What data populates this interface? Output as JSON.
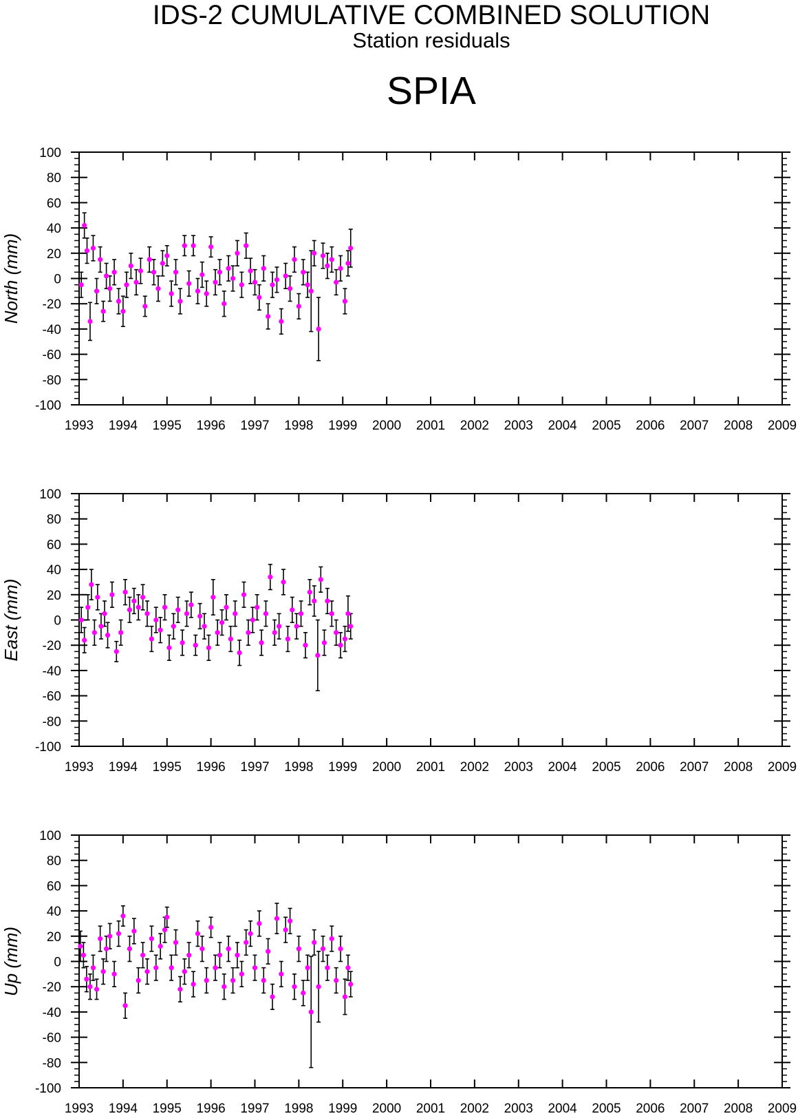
{
  "header": {
    "title": "IDS-2 CUMULATIVE COMBINED SOLUTION",
    "subtitle": "Station residuals",
    "station": "SPIA"
  },
  "colors": {
    "point": "#ff00ff",
    "errorbar": "#000000",
    "axis": "#000000"
  },
  "chart_data": [
    {
      "type": "scatter",
      "ylabel": "North (mm)",
      "xlim": [
        1993,
        2009
      ],
      "ylim": [
        -100,
        100
      ],
      "xticks": [
        "1993",
        "1994",
        "1995",
        "1996",
        "1997",
        "1998",
        "1999",
        "2000",
        "2001",
        "2002",
        "2003",
        "2004",
        "2005",
        "2006",
        "2007",
        "2008",
        "2009"
      ],
      "yticks": [
        "100",
        "80",
        "60",
        "40",
        "20",
        "0",
        "-20",
        "-40",
        "-60",
        "-80",
        "-100"
      ],
      "error_bars": true,
      "series": [
        {
          "x": [
            1993.05,
            1993.12,
            1993.18,
            1993.25,
            1993.32,
            1993.4,
            1993.48,
            1993.55,
            1993.62,
            1993.7,
            1993.8,
            1993.9,
            1994.0,
            1994.08,
            1994.18,
            1994.3,
            1994.4,
            1994.5,
            1994.6,
            1994.7,
            1994.8,
            1994.9,
            1995.0,
            1995.1,
            1995.2,
            1995.3,
            1995.4,
            1995.5,
            1995.6,
            1995.7,
            1995.8,
            1995.9,
            1996.0,
            1996.1,
            1996.2,
            1996.3,
            1996.4,
            1996.5,
            1996.6,
            1996.7,
            1996.8,
            1996.9,
            1997.0,
            1997.1,
            1997.2,
            1997.3,
            1997.4,
            1997.5,
            1997.6,
            1997.7,
            1997.8,
            1997.9,
            1998.0,
            1998.1,
            1998.2,
            1998.28,
            1998.35,
            1998.45,
            1998.55,
            1998.65,
            1998.75,
            1998.85,
            1998.95,
            1999.05,
            1999.12,
            1999.18
          ],
          "y": [
            -5,
            42,
            22,
            -34,
            24,
            -10,
            15,
            -26,
            2,
            -8,
            5,
            -18,
            -26,
            -5,
            10,
            -3,
            6,
            -22,
            15,
            5,
            -8,
            12,
            18,
            -12,
            5,
            -18,
            26,
            -4,
            26,
            -10,
            3,
            -12,
            25,
            -3,
            5,
            -20,
            8,
            0,
            20,
            -5,
            26,
            6,
            -3,
            -15,
            8,
            -30,
            -5,
            -1,
            -34,
            2,
            -8,
            15,
            -22,
            5,
            -5,
            -10,
            20,
            -40,
            18,
            10,
            15,
            -3,
            8,
            -18,
            12,
            24
          ],
          "err": [
            10,
            10,
            10,
            15,
            10,
            10,
            10,
            8,
            10,
            10,
            10,
            10,
            12,
            10,
            10,
            10,
            10,
            8,
            10,
            10,
            10,
            10,
            8,
            10,
            10,
            10,
            8,
            10,
            8,
            10,
            10,
            10,
            8,
            10,
            10,
            10,
            10,
            10,
            10,
            10,
            10,
            10,
            10,
            10,
            10,
            10,
            10,
            10,
            10,
            10,
            10,
            10,
            10,
            10,
            10,
            32,
            10,
            25,
            10,
            10,
            10,
            10,
            10,
            10,
            10,
            15
          ]
        }
      ]
    },
    {
      "type": "scatter",
      "ylabel": "East (mm)",
      "xlim": [
        1993,
        2009
      ],
      "ylim": [
        -100,
        100
      ],
      "xticks": [
        "1993",
        "1994",
        "1995",
        "1996",
        "1997",
        "1998",
        "1999",
        "2000",
        "2001",
        "2002",
        "2003",
        "2004",
        "2005",
        "2006",
        "2007",
        "2008",
        "2009"
      ],
      "yticks": [
        "100",
        "80",
        "60",
        "40",
        "20",
        "0",
        "-20",
        "-40",
        "-60",
        "-80",
        "-100"
      ],
      "error_bars": true,
      "series": [
        {
          "x": [
            1993.05,
            1993.12,
            1993.2,
            1993.28,
            1993.35,
            1993.42,
            1993.5,
            1993.58,
            1993.65,
            1993.75,
            1993.85,
            1993.95,
            1994.05,
            1994.15,
            1994.25,
            1994.35,
            1994.45,
            1994.55,
            1994.65,
            1994.75,
            1994.85,
            1994.95,
            1995.05,
            1995.15,
            1995.25,
            1995.35,
            1995.45,
            1995.55,
            1995.65,
            1995.75,
            1995.85,
            1995.95,
            1996.05,
            1996.15,
            1996.25,
            1996.35,
            1996.45,
            1996.55,
            1996.65,
            1996.75,
            1996.85,
            1996.95,
            1997.05,
            1997.15,
            1997.25,
            1997.35,
            1997.45,
            1997.55,
            1997.65,
            1997.75,
            1997.85,
            1997.95,
            1998.05,
            1998.15,
            1998.25,
            1998.35,
            1998.43,
            1998.5,
            1998.58,
            1998.65,
            1998.75,
            1998.85,
            1998.95,
            1999.05,
            1999.12,
            1999.18
          ],
          "y": [
            0,
            -16,
            10,
            28,
            -10,
            18,
            -5,
            5,
            -12,
            20,
            -25,
            -10,
            22,
            8,
            15,
            10,
            18,
            5,
            -15,
            0,
            -8,
            10,
            -22,
            -5,
            8,
            -18,
            5,
            12,
            -20,
            3,
            -5,
            -22,
            18,
            -10,
            -2,
            10,
            -15,
            5,
            -26,
            20,
            -10,
            0,
            10,
            -18,
            5,
            34,
            -10,
            -5,
            30,
            -15,
            8,
            -5,
            5,
            -20,
            22,
            15,
            -28,
            32,
            -18,
            15,
            5,
            -10,
            -20,
            -15,
            5,
            -5
          ],
          "err": [
            10,
            10,
            10,
            12,
            10,
            10,
            10,
            10,
            10,
            10,
            8,
            10,
            10,
            10,
            10,
            10,
            10,
            10,
            10,
            10,
            10,
            10,
            10,
            10,
            10,
            10,
            10,
            10,
            8,
            10,
            10,
            10,
            14,
            10,
            10,
            10,
            10,
            10,
            10,
            10,
            10,
            10,
            10,
            10,
            10,
            10,
            10,
            10,
            10,
            10,
            10,
            10,
            10,
            10,
            10,
            12,
            28,
            10,
            10,
            10,
            10,
            10,
            10,
            10,
            14,
            10
          ]
        }
      ]
    },
    {
      "type": "scatter",
      "ylabel": "Up (mm)",
      "xlim": [
        1993,
        2009
      ],
      "ylim": [
        -100,
        100
      ],
      "xticks": [
        "1993",
        "1994",
        "1995",
        "1996",
        "1997",
        "1998",
        "1999",
        "2000",
        "2001",
        "2002",
        "2003",
        "2004",
        "2005",
        "2006",
        "2007",
        "2008",
        "2009"
      ],
      "yticks": [
        "100",
        "80",
        "60",
        "40",
        "20",
        "0",
        "-20",
        "-40",
        "-60",
        "-80",
        "-100"
      ],
      "error_bars": true,
      "series": [
        {
          "x": [
            1993.03,
            1993.1,
            1993.17,
            1993.25,
            1993.32,
            1993.4,
            1993.48,
            1993.55,
            1993.62,
            1993.7,
            1993.8,
            1993.9,
            1994.0,
            1994.05,
            1994.15,
            1994.25,
            1994.35,
            1994.45,
            1994.55,
            1994.65,
            1994.75,
            1994.85,
            1994.95,
            1995.0,
            1995.1,
            1995.2,
            1995.3,
            1995.4,
            1995.5,
            1995.6,
            1995.7,
            1995.8,
            1995.9,
            1996.0,
            1996.1,
            1996.2,
            1996.3,
            1996.4,
            1996.5,
            1996.6,
            1996.7,
            1996.8,
            1996.9,
            1997.0,
            1997.1,
            1997.2,
            1997.3,
            1997.4,
            1997.5,
            1997.6,
            1997.7,
            1997.8,
            1997.9,
            1998.0,
            1998.1,
            1998.2,
            1998.28,
            1998.35,
            1998.45,
            1998.55,
            1998.65,
            1998.75,
            1998.85,
            1998.95,
            1999.05,
            1999.12,
            1999.18
          ],
          "y": [
            12,
            5,
            -14,
            -20,
            -5,
            -22,
            18,
            -8,
            10,
            20,
            -10,
            22,
            36,
            -35,
            10,
            24,
            -15,
            5,
            -8,
            18,
            -5,
            12,
            25,
            35,
            -5,
            15,
            -22,
            -8,
            5,
            -18,
            22,
            10,
            -15,
            27,
            -5,
            5,
            -20,
            10,
            -15,
            5,
            -10,
            15,
            22,
            -5,
            30,
            -15,
            8,
            -28,
            34,
            -10,
            25,
            32,
            -20,
            10,
            -25,
            -5,
            -40,
            15,
            -20,
            10,
            -5,
            18,
            -15,
            10,
            -28,
            -5,
            -18
          ],
          "err": [
            12,
            10,
            10,
            10,
            10,
            8,
            10,
            10,
            10,
            10,
            10,
            10,
            8,
            10,
            10,
            10,
            10,
            10,
            10,
            10,
            10,
            10,
            10,
            8,
            10,
            10,
            10,
            10,
            10,
            10,
            10,
            10,
            10,
            8,
            10,
            10,
            10,
            10,
            10,
            10,
            10,
            10,
            10,
            10,
            10,
            10,
            10,
            10,
            12,
            10,
            10,
            10,
            10,
            10,
            10,
            10,
            44,
            10,
            28,
            10,
            10,
            10,
            10,
            10,
            14,
            10,
            10
          ]
        }
      ]
    }
  ]
}
